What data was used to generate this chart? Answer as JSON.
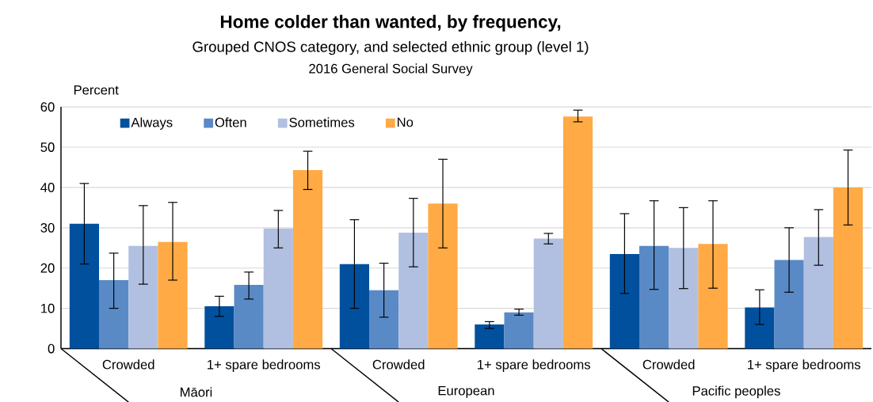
{
  "chart_data": {
    "type": "bar",
    "title": "Home colder than wanted, by frequency,",
    "subtitle": "Grouped CNOS category, and selected ethnic group (level 1)",
    "annotations": [
      "2016 General Social Survey",
      "Māori",
      "European",
      "Pacific peoples"
    ],
    "ylabel": "Percent",
    "categories": [
      "Crowded",
      "1+ spare bedrooms",
      "Crowded",
      "1+ spare bedrooms",
      "Crowded",
      "1+ spare bedrooms"
    ],
    "series": [
      {
        "name": "Always",
        "color": "#00509e",
        "values": [
          31,
          10.5,
          21,
          6,
          23.5,
          10.2
        ],
        "errors": [
          [
            21,
            41
          ],
          [
            8,
            13
          ],
          [
            10,
            32
          ],
          [
            5,
            6.7
          ],
          [
            13.7,
            33.5
          ],
          [
            6,
            14.6
          ]
        ]
      },
      {
        "name": "Often",
        "color": "#5a8ac6",
        "values": [
          17,
          15.8,
          14.5,
          9,
          25.5,
          22
        ],
        "errors": [
          [
            10,
            23.7
          ],
          [
            12.3,
            19
          ],
          [
            7.8,
            21.2
          ],
          [
            8.3,
            9.8
          ],
          [
            14.7,
            36.7
          ],
          [
            14,
            30
          ]
        ]
      },
      {
        "name": "Sometimes",
        "color": "#b1c0e0",
        "values": [
          25.5,
          29.8,
          28.8,
          27.3,
          25,
          27.7
        ],
        "errors": [
          [
            16,
            35.5
          ],
          [
            25,
            34.3
          ],
          [
            20.3,
            37.3
          ],
          [
            26,
            28.6
          ],
          [
            14.9,
            35
          ],
          [
            20.7,
            34.5
          ]
        ]
      },
      {
        "name": "No",
        "color": "#ffaa44",
        "values": [
          26.5,
          44.3,
          36,
          57.6,
          26,
          40
        ],
        "errors": [
          [
            17,
            36.3
          ],
          [
            39.5,
            49
          ],
          [
            25,
            47
          ],
          [
            56.3,
            59.2
          ],
          [
            15,
            36.7
          ],
          [
            30.7,
            49.3
          ]
        ]
      }
    ],
    "ylim": [
      0,
      60
    ],
    "yticks": [
      0,
      10,
      20,
      30,
      40,
      50,
      60
    ],
    "grid": "y",
    "legend": "top"
  }
}
